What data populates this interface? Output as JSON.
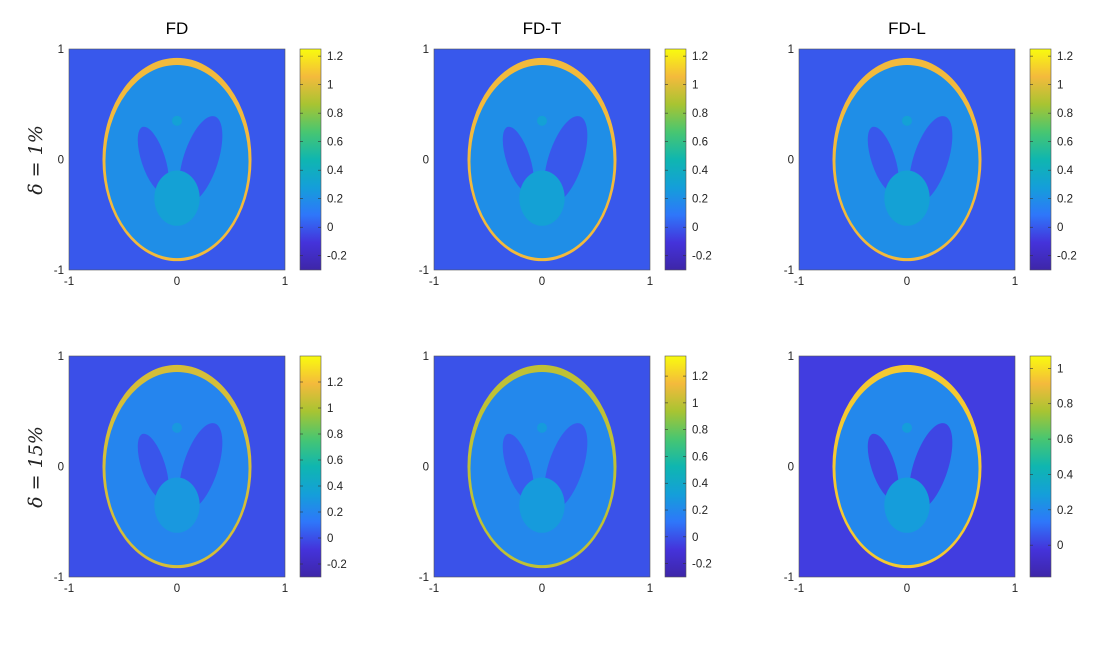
{
  "chart_data": {
    "type": "heatmap",
    "description_colormap": "parula",
    "column_titles": [
      "FD",
      "FD-T",
      "FD-L"
    ],
    "row_labels": [
      "δ = 1%",
      "δ = 15%"
    ],
    "axes": {
      "xlim": [
        -1,
        1
      ],
      "ylim": [
        -1,
        1
      ],
      "xticks": [
        -1,
        0,
        1
      ],
      "yticks": [
        -1,
        0,
        1
      ],
      "xtick_labels": [
        "-1",
        "0",
        "1"
      ],
      "ytick_labels": [
        "-1",
        "0",
        "1"
      ]
    },
    "panels": [
      {
        "row": 0,
        "col": 0,
        "name": "FD, δ = 1%",
        "clim": [
          -0.3,
          1.25
        ],
        "cbar_ticks": [
          -0.2,
          0,
          0.2,
          0.4,
          0.6,
          0.8,
          1,
          1.2
        ],
        "cbar_tick_labels": [
          "-0.2",
          "0",
          "0.2",
          "0.4",
          "0.6",
          "0.8",
          "1",
          "1.2"
        ],
        "values": {
          "background": 0.0,
          "skull": 1.05,
          "tissue": 0.2,
          "ventricles": 0.0,
          "center": 0.3
        }
      },
      {
        "row": 0,
        "col": 1,
        "name": "FD-T, δ = 1%",
        "clim": [
          -0.3,
          1.25
        ],
        "cbar_ticks": [
          -0.2,
          0,
          0.2,
          0.4,
          0.6,
          0.8,
          1,
          1.2
        ],
        "cbar_tick_labels": [
          "-0.2",
          "0",
          "0.2",
          "0.4",
          "0.6",
          "0.8",
          "1",
          "1.2"
        ],
        "values": {
          "background": 0.0,
          "skull": 1.05,
          "tissue": 0.2,
          "ventricles": 0.0,
          "center": 0.3
        }
      },
      {
        "row": 0,
        "col": 2,
        "name": "FD-L, δ = 1%",
        "clim": [
          -0.3,
          1.25
        ],
        "cbar_ticks": [
          -0.2,
          0,
          0.2,
          0.4,
          0.6,
          0.8,
          1,
          1.2
        ],
        "cbar_tick_labels": [
          "-0.2",
          "0",
          "0.2",
          "0.4",
          "0.6",
          "0.8",
          "1",
          "1.2"
        ],
        "values": {
          "background": 0.0,
          "skull": 1.05,
          "tissue": 0.2,
          "ventricles": 0.0,
          "center": 0.3
        }
      },
      {
        "row": 1,
        "col": 0,
        "name": "FD, δ = 15%",
        "clim": [
          -0.3,
          1.4
        ],
        "cbar_ticks": [
          -0.2,
          0,
          0.2,
          0.4,
          0.6,
          0.8,
          1,
          1.2
        ],
        "cbar_tick_labels": [
          "-0.2",
          "0",
          "0.2",
          "0.4",
          "0.6",
          "0.8",
          "1",
          "1.2"
        ],
        "values": {
          "background": 0.0,
          "skull": 1.1,
          "tissue": 0.2,
          "ventricles": 0.02,
          "center": 0.3
        }
      },
      {
        "row": 1,
        "col": 1,
        "name": "FD-T, δ = 15%",
        "clim": [
          -0.3,
          1.35
        ],
        "cbar_ticks": [
          -0.2,
          0,
          0.2,
          0.4,
          0.6,
          0.8,
          1,
          1.2
        ],
        "cbar_tick_labels": [
          "-0.2",
          "0",
          "0.2",
          "0.4",
          "0.6",
          "0.8",
          "1",
          "1.2"
        ],
        "values": {
          "background": 0.0,
          "skull": 1.0,
          "tissue": 0.2,
          "ventricles": 0.03,
          "center": 0.3
        }
      },
      {
        "row": 1,
        "col": 2,
        "name": "FD-L, δ = 15%",
        "clim": [
          -0.18,
          1.07
        ],
        "cbar_ticks": [
          0,
          0.2,
          0.4,
          0.6,
          0.8,
          1
        ],
        "cbar_tick_labels": [
          "0",
          "0.2",
          "0.4",
          "0.6",
          "0.8",
          "1"
        ],
        "values": {
          "background": 0.0,
          "skull": 0.95,
          "tissue": 0.2,
          "ventricles": 0.02,
          "center": 0.28
        }
      }
    ]
  }
}
